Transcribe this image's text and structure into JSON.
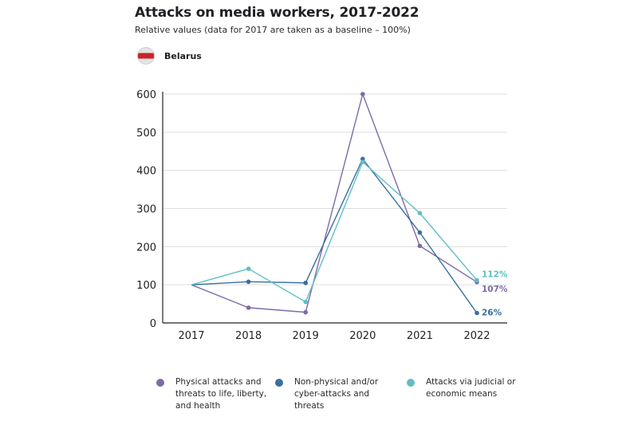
{
  "header": {
    "title": "Attacks on media workers, 2017-2022",
    "subtitle": "Relative values (data for 2017 are taken as a baseline – 100%)",
    "country": "Belarus"
  },
  "colors": {
    "physical": "#7e6aa8",
    "nonphysical": "#3a6f9e",
    "judicial": "#5fbfc4",
    "grid": "#dddddd",
    "axis": "#222222"
  },
  "icons": {
    "flag": "belarus-flag-icon"
  },
  "chart_data": {
    "type": "line",
    "title": "Attacks on media workers, 2017-2022",
    "subtitle": "Relative values (data for 2017 are taken as a baseline – 100%)",
    "x": [
      "2017",
      "2018",
      "2019",
      "2020",
      "2021",
      "2022"
    ],
    "ylim": [
      0,
      600
    ],
    "yticks": [
      "0",
      "100",
      "200",
      "300",
      "400",
      "500",
      "600"
    ],
    "grid": true,
    "legend_position": "bottom",
    "series": [
      {
        "key": "physical",
        "name": "Physical attacks and threats to life, liberty, and health",
        "values": [
          100,
          40,
          28,
          600,
          202,
          107
        ],
        "end_label": "107%"
      },
      {
        "key": "nonphysical",
        "name": "Non-physical and/or cyber-attacks and threats",
        "values": [
          100,
          108,
          105,
          430,
          237,
          26
        ],
        "end_label": "26%"
      },
      {
        "key": "judicial",
        "name": "Attacks via judicial or economic means",
        "values": [
          100,
          142,
          55,
          422,
          288,
          112
        ],
        "end_label": "112%"
      }
    ]
  }
}
